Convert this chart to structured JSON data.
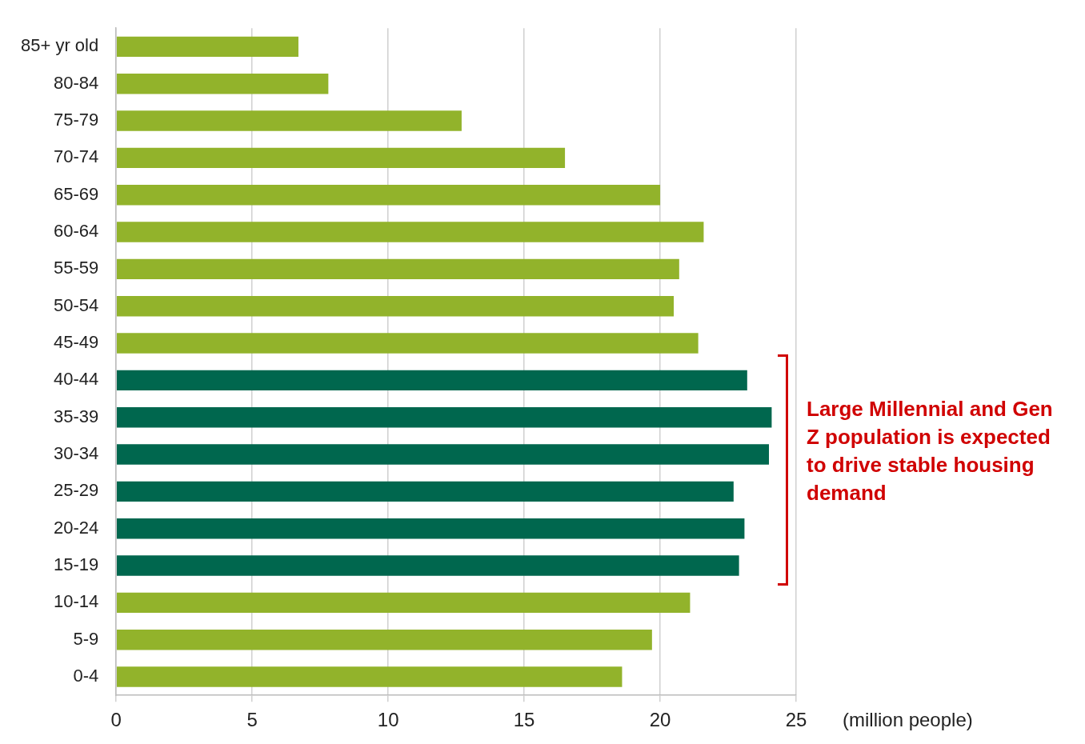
{
  "chart_data": {
    "type": "bar",
    "orientation": "horizontal",
    "categories": [
      "85+ yr old",
      "80-84",
      "75-79",
      "70-74",
      "65-69",
      "60-64",
      "55-59",
      "50-54",
      "45-49",
      "40-44",
      "35-39",
      "30-34",
      "25-29",
      "20-24",
      "15-19",
      "10-14",
      "5-9",
      "0-4"
    ],
    "values": [
      6.7,
      7.8,
      12.7,
      16.5,
      20.0,
      21.6,
      20.7,
      20.5,
      21.4,
      23.2,
      24.1,
      24.0,
      22.7,
      23.1,
      22.9,
      21.1,
      19.7,
      18.6
    ],
    "colors": [
      "#92b32b",
      "#92b32b",
      "#92b32b",
      "#92b32b",
      "#92b32b",
      "#92b32b",
      "#92b32b",
      "#92b32b",
      "#92b32b",
      "#00674e",
      "#00674e",
      "#00674e",
      "#00674e",
      "#00674e",
      "#00674e",
      "#92b32b",
      "#92b32b",
      "#92b32b"
    ],
    "xlabel": "(million people)",
    "xlim": [
      0,
      25
    ],
    "xticks": [
      0,
      5,
      10,
      15,
      20,
      25
    ],
    "grid": "x",
    "legend": false,
    "annotations": [
      "Large Millennial and Gen Z population is expected to drive stable housing demand"
    ]
  }
}
